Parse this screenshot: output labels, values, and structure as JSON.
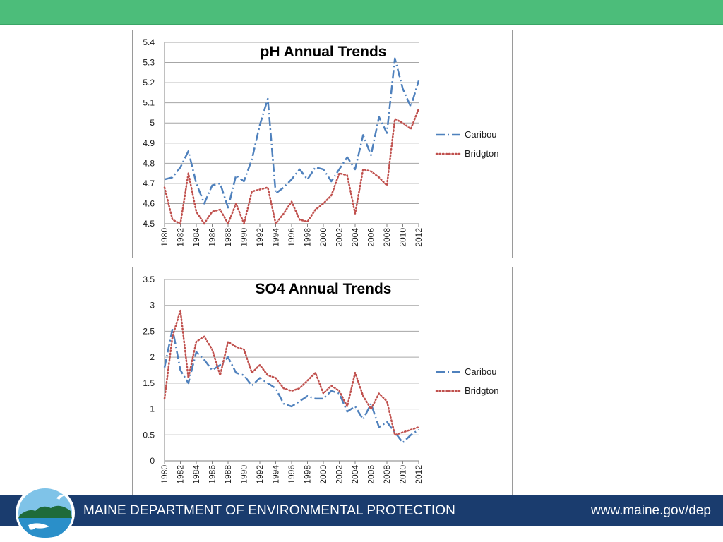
{
  "footer": {
    "title": "MAINE DEPARTMENT OF ENVIRONMENTAL PROTECTION",
    "url": "www.maine.gov/dep"
  },
  "colors": {
    "top_bar": "#4cbd7a",
    "footer": "#1a3c6e",
    "caribou": "#4f81bd",
    "bridgton": "#c0504d"
  },
  "chart_data": [
    {
      "type": "line",
      "title": "pH Annual Trends",
      "x": [
        1980,
        1981,
        1982,
        1983,
        1984,
        1985,
        1986,
        1987,
        1988,
        1989,
        1990,
        1991,
        1992,
        1993,
        1994,
        1995,
        1996,
        1997,
        1998,
        1999,
        2000,
        2001,
        2002,
        2003,
        2004,
        2005,
        2006,
        2007,
        2008,
        2009,
        2010,
        2011,
        2012
      ],
      "x_ticks": [
        "1980",
        "1982",
        "1984",
        "1986",
        "1988",
        "1990",
        "1992",
        "1994",
        "1996",
        "1998",
        "2000",
        "2002",
        "2004",
        "2006",
        "2008",
        "2010",
        "2012"
      ],
      "ylim": [
        4.5,
        5.4
      ],
      "y_ticks": [
        "4.5",
        "4.6",
        "4.7",
        "4.8",
        "4.9",
        "5",
        "5.1",
        "5.2",
        "5.3",
        "5.4"
      ],
      "grid": true,
      "legend": "right",
      "series": [
        {
          "name": "Caribou",
          "values": [
            4.72,
            4.73,
            4.78,
            4.86,
            4.7,
            4.6,
            4.69,
            4.7,
            4.58,
            4.74,
            4.71,
            4.82,
            4.99,
            5.12,
            4.65,
            4.68,
            4.72,
            4.77,
            4.72,
            4.78,
            4.77,
            4.71,
            4.77,
            4.83,
            4.77,
            4.94,
            4.84,
            5.03,
            4.95,
            5.32,
            5.17,
            5.08,
            5.21
          ]
        },
        {
          "name": "Bridgton",
          "values": [
            4.68,
            4.52,
            4.47,
            4.75,
            4.56,
            4.46,
            4.56,
            4.57,
            4.46,
            4.6,
            4.48,
            4.66,
            4.67,
            4.68,
            4.5,
            4.55,
            4.61,
            4.52,
            4.51,
            4.57,
            4.6,
            4.64,
            4.75,
            4.74,
            4.55,
            4.77,
            4.76,
            4.73,
            4.69,
            5.02,
            5.0,
            4.97,
            5.07
          ]
        }
      ]
    },
    {
      "type": "line",
      "title": "SO4 Annual Trends",
      "x": [
        1980,
        1981,
        1982,
        1983,
        1984,
        1985,
        1986,
        1987,
        1988,
        1989,
        1990,
        1991,
        1992,
        1993,
        1994,
        1995,
        1996,
        1997,
        1998,
        1999,
        2000,
        2001,
        2002,
        2003,
        2004,
        2005,
        2006,
        2007,
        2008,
        2009,
        2010,
        2011,
        2012
      ],
      "x_ticks": [
        "1980",
        "1982",
        "1984",
        "1986",
        "1988",
        "1990",
        "1992",
        "1994",
        "1996",
        "1998",
        "2000",
        "2002",
        "2004",
        "2006",
        "2008",
        "2010",
        "2012"
      ],
      "ylim": [
        0,
        3.5
      ],
      "y_ticks": [
        "0",
        "0.5",
        "1",
        "1.5",
        "2",
        "2.5",
        "3",
        "3.5"
      ],
      "grid": true,
      "legend": "right",
      "series": [
        {
          "name": "Caribou",
          "values": [
            1.8,
            2.55,
            1.75,
            1.5,
            2.1,
            1.95,
            1.75,
            1.85,
            2.0,
            1.7,
            1.65,
            1.45,
            1.6,
            1.5,
            1.4,
            1.1,
            1.05,
            1.15,
            1.25,
            1.2,
            1.2,
            1.35,
            1.3,
            0.95,
            1.05,
            0.8,
            1.1,
            0.65,
            0.75,
            0.55,
            0.35,
            0.5,
            0.6
          ]
        },
        {
          "name": "Bridgton",
          "values": [
            1.2,
            2.4,
            2.9,
            1.6,
            2.3,
            2.4,
            2.15,
            1.65,
            2.3,
            2.2,
            2.15,
            1.7,
            1.85,
            1.65,
            1.6,
            1.4,
            1.35,
            1.4,
            1.55,
            1.7,
            1.3,
            1.45,
            1.35,
            1.05,
            1.7,
            1.25,
            1.0,
            1.3,
            1.15,
            0.5,
            0.55,
            0.6,
            0.65
          ]
        }
      ]
    }
  ]
}
